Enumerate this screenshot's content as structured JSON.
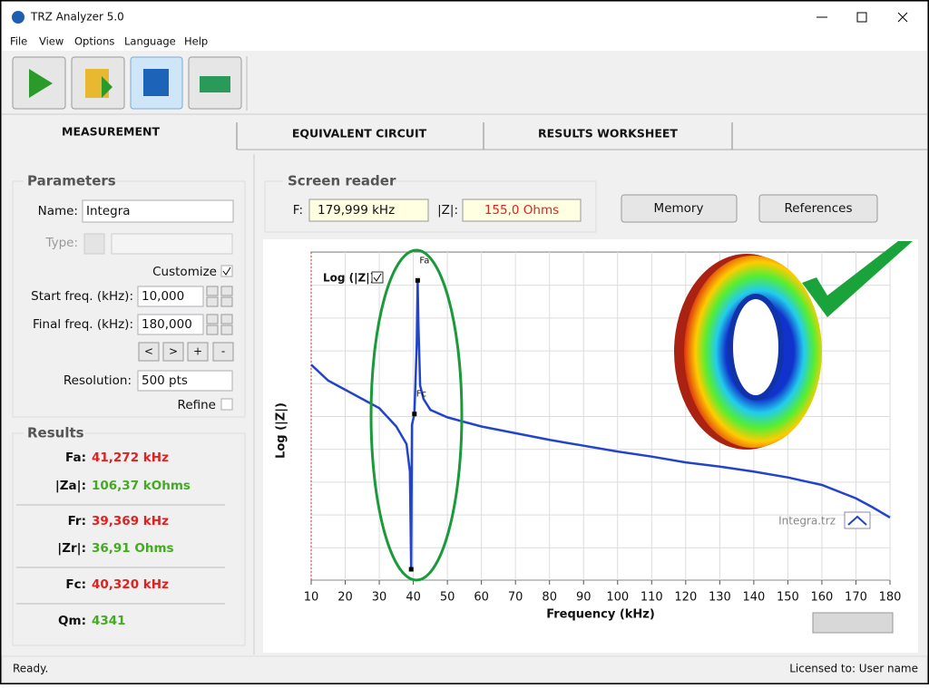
{
  "window": {
    "title": "TRZ Analyzer 5.0"
  },
  "menu": [
    "File",
    "View",
    "Options",
    "Language",
    "Help"
  ],
  "tabs": [
    "MEASUREMENT",
    "EQUIVALENT CIRCUIT",
    "RESULTS WORKSHEET"
  ],
  "parameters": {
    "title": "Parameters",
    "name_label": "Name:",
    "name": "Integra",
    "type_label": "Type:",
    "customize": "Customize",
    "start_label": "Start freq. (kHz):",
    "start": "10,000",
    "final_label": "Final freq. (kHz):",
    "final": "180,000",
    "buttons": [
      "<",
      ">",
      "+",
      "-"
    ],
    "resolution_label": "Resolution:",
    "resolution": "500 pts",
    "refine": "Refine"
  },
  "results": {
    "title": "Results",
    "rows": [
      {
        "label": "Fa:",
        "value": "41,272 kHz",
        "color": "#dd2222"
      },
      {
        "label": "|Za|:",
        "value": "106,37 kOhms",
        "color": "#44aa22"
      },
      {
        "label": "Fr:",
        "value": "39,369 kHz",
        "color": "#dd2222"
      },
      {
        "label": "|Zr|:",
        "value": "36,91 Ohms",
        "color": "#44aa22"
      },
      {
        "label": "Fc:",
        "value": "40,320 kHz",
        "color": "#dd2222"
      },
      {
        "label": "Qm:",
        "value": "4341",
        "color": "#44aa22"
      }
    ]
  },
  "screen_reader": {
    "title": "Screen reader",
    "f_label": "F:",
    "f": "179,999 kHz",
    "z_label": "|Z|:",
    "z": "155,0 Ohms"
  },
  "buttons": [
    "Memory",
    "References"
  ],
  "status": {
    "left": "Ready.",
    "right": "Licensed to: User name"
  },
  "chart_data": {
    "type": "line",
    "x_label": "Frequency (kHz)",
    "y_label": "Log (|Z|)",
    "log_toggle": "Log (|Z|)",
    "xlim": [
      10,
      180
    ],
    "xticks": [
      10,
      20,
      30,
      40,
      50,
      60,
      70,
      80,
      90,
      100,
      110,
      120,
      130,
      140,
      150,
      160,
      170,
      180
    ],
    "ylim": [
      1.44,
      5.37
    ],
    "grid": true,
    "series": [
      {
        "name": "Integra.trz",
        "color": "#2244cc",
        "x": [
          10,
          15,
          20,
          25,
          30,
          35,
          38,
          39,
          39.369,
          39.6,
          40.32,
          41,
          41.272,
          41.5,
          42,
          43,
          45,
          50,
          60,
          70,
          80,
          90,
          100,
          110,
          120,
          130,
          140,
          150,
          160,
          170,
          175,
          180
        ],
        "values": [
          4.02,
          3.83,
          3.72,
          3.61,
          3.5,
          3.28,
          3.07,
          2.74,
          1.57,
          3.3,
          3.43,
          4.26,
          5.03,
          4.5,
          3.77,
          3.61,
          3.48,
          3.39,
          3.28,
          3.2,
          3.12,
          3.05,
          2.98,
          2.92,
          2.85,
          2.8,
          2.74,
          2.67,
          2.58,
          2.42,
          2.31,
          2.19
        ]
      }
    ],
    "markers": [
      {
        "label": "Fa",
        "x": 41.272,
        "y": 5.03
      },
      {
        "label": "Fc",
        "x": 40.32,
        "y": 3.43
      },
      {
        "x": 39.369,
        "y": 1.57
      }
    ]
  }
}
